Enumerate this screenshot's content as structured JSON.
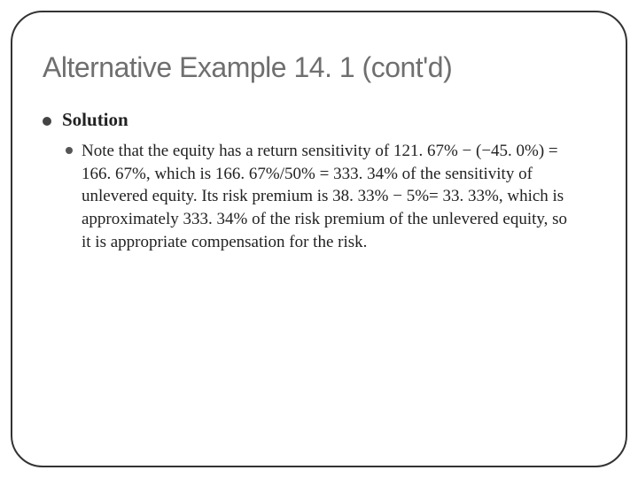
{
  "title": "Alternative Example 14. 1 (cont'd)",
  "bullets": {
    "level1": {
      "text": "Solution"
    },
    "level2": {
      "text": "Note that the equity has a return sensitivity of 121. 67% − (−45. 0%) = 166. 67%, which is 166. 67%/50% = 333. 34% of the sensitivity of unlevered equity. Its risk premium is 38. 33% − 5%= 33. 33%, which is approximately 333. 34% of the risk premium of the unlevered equity, so it is appropriate compensation for the risk."
    }
  },
  "style": {
    "background": "#ffffff",
    "title_color": "#6f6f6f",
    "title_fontsize": 32,
    "body_fontsize": 19,
    "border_radius": 36,
    "border_color": "#333333"
  }
}
